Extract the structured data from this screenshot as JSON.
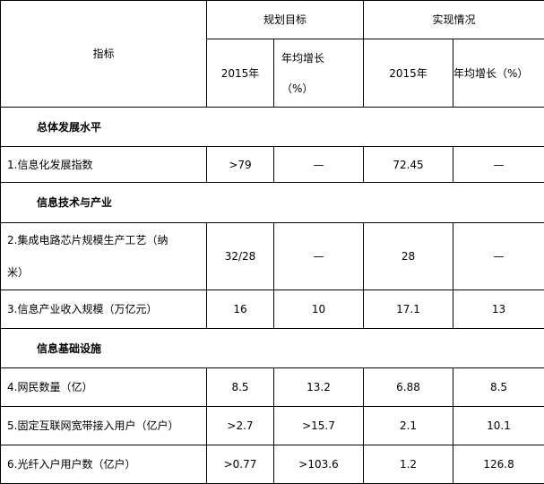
{
  "header": {
    "indicator": "指标",
    "plan_group": "规划目标",
    "actual_group": "实现情况",
    "plan_year": "2015年",
    "plan_growth_line1": "年均增长",
    "plan_growth_line2": "（%）",
    "actual_year": "2015年",
    "actual_growth": "年均增长（%）"
  },
  "sections": [
    {
      "title": "总体发展水平",
      "rows": [
        {
          "name": "1.信息化发展指数",
          "plan_2015": ">79",
          "plan_growth": "—",
          "actual_2015": "72.45",
          "actual_growth": "—"
        }
      ]
    },
    {
      "title": "信息技术与产业",
      "rows": [
        {
          "name_line1": "2.集成电路芯片规模生产工艺（纳",
          "name_line2": "米）",
          "plan_2015": "32/28",
          "plan_growth": "—",
          "actual_2015": "28",
          "actual_growth": "—"
        },
        {
          "name": "3.信息产业收入规模（万亿元）",
          "plan_2015": "16",
          "plan_growth": "10",
          "actual_2015": "17.1",
          "actual_growth": "13"
        }
      ]
    },
    {
      "title": "信息基础设施",
      "rows": [
        {
          "name": "4.网民数量（亿）",
          "plan_2015": "8.5",
          "plan_growth": "13.2",
          "actual_2015": "6.88",
          "actual_growth": "8.5"
        },
        {
          "name": "5.固定互联网宽带接入用户（亿户）",
          "plan_2015": ">2.7",
          "plan_growth": ">15.7",
          "actual_2015": "2.1",
          "actual_growth": "10.1"
        },
        {
          "name": "6.光纤入户用户数（亿户）",
          "plan_2015": ">0.77",
          "plan_growth": ">103.6",
          "actual_2015": "1.2",
          "actual_growth": "126.8"
        }
      ]
    }
  ]
}
